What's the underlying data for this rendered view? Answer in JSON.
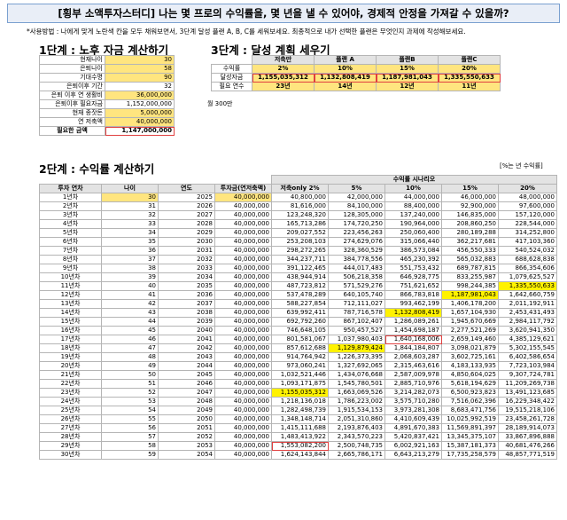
{
  "title": "[횡부 소액투자스터디] 나는 몇 프로의 수익률을, 몇 년을 낼 수 있어야, 경제적 안정을 가져갈 수 있을까?",
  "usage_note": "*사용방법 : 나에게 맞게 노란색 칸을 모두 채워보면서, 3단계 달성 플랜 A, B, C를 세워보세요. 최종적으로 내가 선택한 플랜은 무엇인지 과제에 작성해보세요.",
  "step1": {
    "heading": "1단계 : 노후 자금 계산하기",
    "rows": [
      {
        "label": "현재나이",
        "value": "30"
      },
      {
        "label": "은퇴나이",
        "value": "58"
      },
      {
        "label": "기대수명",
        "value": "90"
      },
      {
        "label": "은퇴이후 기간",
        "value": "32"
      },
      {
        "label": "은퇴 이후 연 생활비",
        "value": "36,000,000",
        "extra": "월 300만"
      },
      {
        "label": "은퇴이후 필요자금",
        "value": "1,152,000,000"
      },
      {
        "label": "현재 종잣돈",
        "value": "5,000,000"
      },
      {
        "label": "연 저축액",
        "value": "40,000,000"
      },
      {
        "label": "필요한 금액",
        "value": "1,147,000,000"
      }
    ]
  },
  "step3": {
    "heading": "3단계 : 달성 계획 세우기",
    "columns": [
      "",
      "저축만",
      "플랜 A",
      "플랜B",
      "플랜C"
    ],
    "rows": [
      {
        "label": "수익률",
        "values": [
          "2%",
          "10%",
          "15%",
          "20%"
        ]
      },
      {
        "label": "달성자금",
        "values": [
          "1,155,035,312",
          "1,132,808,419",
          "1,187,981,043",
          "1,335,550,633"
        ]
      },
      {
        "label": "필요 연수",
        "values": [
          "23년",
          "14년",
          "12년",
          "11년"
        ]
      }
    ]
  },
  "step2": {
    "heading": "2단계 : 수익률 계산하기",
    "unit_note": "[%는 년 수익률]",
    "group_header": "수익률 시나리오",
    "columns": [
      "투자 연차",
      "나이",
      "연도",
      "투자금(연저축액)",
      "저축only 2%",
      "5%",
      "10%",
      "15%",
      "20%"
    ],
    "rows": [
      [
        "1년차",
        "30",
        "2025",
        "40,000,000",
        "40,800,000",
        "42,000,000",
        "44,000,000",
        "46,000,000",
        "48,000,000"
      ],
      [
        "2년차",
        "31",
        "2026",
        "40,000,000",
        "81,616,000",
        "84,100,000",
        "88,400,000",
        "92,900,000",
        "97,600,000"
      ],
      [
        "3년차",
        "32",
        "2027",
        "40,000,000",
        "123,248,320",
        "128,305,000",
        "137,240,000",
        "146,835,000",
        "157,120,000"
      ],
      [
        "4년차",
        "33",
        "2028",
        "40,000,000",
        "165,713,286",
        "174,720,250",
        "190,964,000",
        "208,860,250",
        "228,544,000"
      ],
      [
        "5년차",
        "34",
        "2029",
        "40,000,000",
        "209,027,552",
        "223,456,263",
        "250,060,400",
        "280,189,288",
        "314,252,800"
      ],
      [
        "6년차",
        "35",
        "2030",
        "40,000,000",
        "253,208,103",
        "274,629,076",
        "315,066,440",
        "362,217,681",
        "417,103,360"
      ],
      [
        "7년차",
        "36",
        "2031",
        "40,000,000",
        "298,272,265",
        "328,360,529",
        "386,573,084",
        "456,550,333",
        "540,524,032"
      ],
      [
        "8년차",
        "37",
        "2032",
        "40,000,000",
        "344,237,711",
        "384,778,556",
        "465,230,392",
        "565,032,883",
        "688,628,838"
      ],
      [
        "9년차",
        "38",
        "2033",
        "40,000,000",
        "391,122,465",
        "444,017,483",
        "551,753,432",
        "689,787,815",
        "866,354,606"
      ],
      [
        "10년차",
        "39",
        "2034",
        "40,000,000",
        "438,944,914",
        "506,218,358",
        "646,928,775",
        "833,255,987",
        "1,079,625,527"
      ],
      [
        "11년차",
        "40",
        "2035",
        "40,000,000",
        "487,723,812",
        "571,529,276",
        "751,621,652",
        "998,244,385",
        "1,335,550,633"
      ],
      [
        "12년차",
        "41",
        "2036",
        "40,000,000",
        "537,478,289",
        "640,105,740",
        "866,783,818",
        "1,187,981,043",
        "1,642,660,759"
      ],
      [
        "13년차",
        "42",
        "2037",
        "40,000,000",
        "588,227,854",
        "712,111,027",
        "993,462,199",
        "1,406,178,200",
        "2,011,192,911"
      ],
      [
        "14년차",
        "43",
        "2038",
        "40,000,000",
        "639,992,411",
        "787,716,578",
        "1,132,808,419",
        "1,657,104,930",
        "2,453,431,493"
      ],
      [
        "15년차",
        "44",
        "2039",
        "40,000,000",
        "692,792,260",
        "867,102,407",
        "1,286,089,261",
        "1,945,670,669",
        "2,984,117,792"
      ],
      [
        "16년차",
        "45",
        "2040",
        "40,000,000",
        "746,648,105",
        "950,457,527",
        "1,454,698,187",
        "2,277,521,269",
        "3,620,941,350"
      ],
      [
        "17년차",
        "46",
        "2041",
        "40,000,000",
        "801,581,067",
        "1,037,980,403",
        "1,640,168,006",
        "2,659,149,460",
        "4,385,129,621"
      ],
      [
        "18년차",
        "47",
        "2042",
        "40,000,000",
        "857,612,688",
        "1,129,879,424",
        "1,844,184,807",
        "3,098,021,879",
        "5,302,155,545"
      ],
      [
        "19년차",
        "48",
        "2043",
        "40,000,000",
        "914,764,942",
        "1,226,373,395",
        "2,068,603,287",
        "3,602,725,161",
        "6,402,586,654"
      ],
      [
        "20년차",
        "49",
        "2044",
        "40,000,000",
        "973,060,241",
        "1,327,692,065",
        "2,315,463,616",
        "4,183,133,935",
        "7,723,103,984"
      ],
      [
        "21년차",
        "50",
        "2045",
        "40,000,000",
        "1,032,521,446",
        "1,434,076,668",
        "2,587,009,978",
        "4,850,604,025",
        "9,307,724,781"
      ],
      [
        "22년차",
        "51",
        "2046",
        "40,000,000",
        "1,093,171,875",
        "1,545,780,501",
        "2,885,710,976",
        "5,618,194,629",
        "11,209,269,738"
      ],
      [
        "23년차",
        "52",
        "2047",
        "40,000,000",
        "1,155,035,312",
        "1,663,069,526",
        "3,214,282,073",
        "6,500,923,823",
        "13,491,123,685"
      ],
      [
        "24년차",
        "53",
        "2048",
        "40,000,000",
        "1,218,136,018",
        "1,786,223,002",
        "3,575,710,280",
        "7,516,062,396",
        "16,229,348,422"
      ],
      [
        "25년차",
        "54",
        "2049",
        "40,000,000",
        "1,282,498,739",
        "1,915,534,153",
        "3,973,281,308",
        "8,683,471,756",
        "19,515,218,106"
      ],
      [
        "26년차",
        "55",
        "2050",
        "40,000,000",
        "1,348,148,714",
        "2,051,310,860",
        "4,410,609,439",
        "10,025,992,519",
        "23,458,261,728"
      ],
      [
        "27년차",
        "56",
        "2051",
        "40,000,000",
        "1,415,111,688",
        "2,193,876,403",
        "4,891,670,383",
        "11,569,891,397",
        "28,189,914,073"
      ],
      [
        "28년차",
        "57",
        "2052",
        "40,000,000",
        "1,483,413,922",
        "2,343,570,223",
        "5,420,837,421",
        "13,345,375,107",
        "33,867,896,888"
      ],
      [
        "29년차",
        "58",
        "2053",
        "40,000,000",
        "1,553,082,200",
        "2,500,748,735",
        "6,002,921,163",
        "15,387,181,373",
        "40,681,476,266"
      ],
      [
        "30년차",
        "59",
        "2054",
        "40,000,000",
        "1,624,143,844",
        "2,665,786,171",
        "6,643,213,279",
        "17,735,258,579",
        "48,857,771,519"
      ]
    ]
  }
}
